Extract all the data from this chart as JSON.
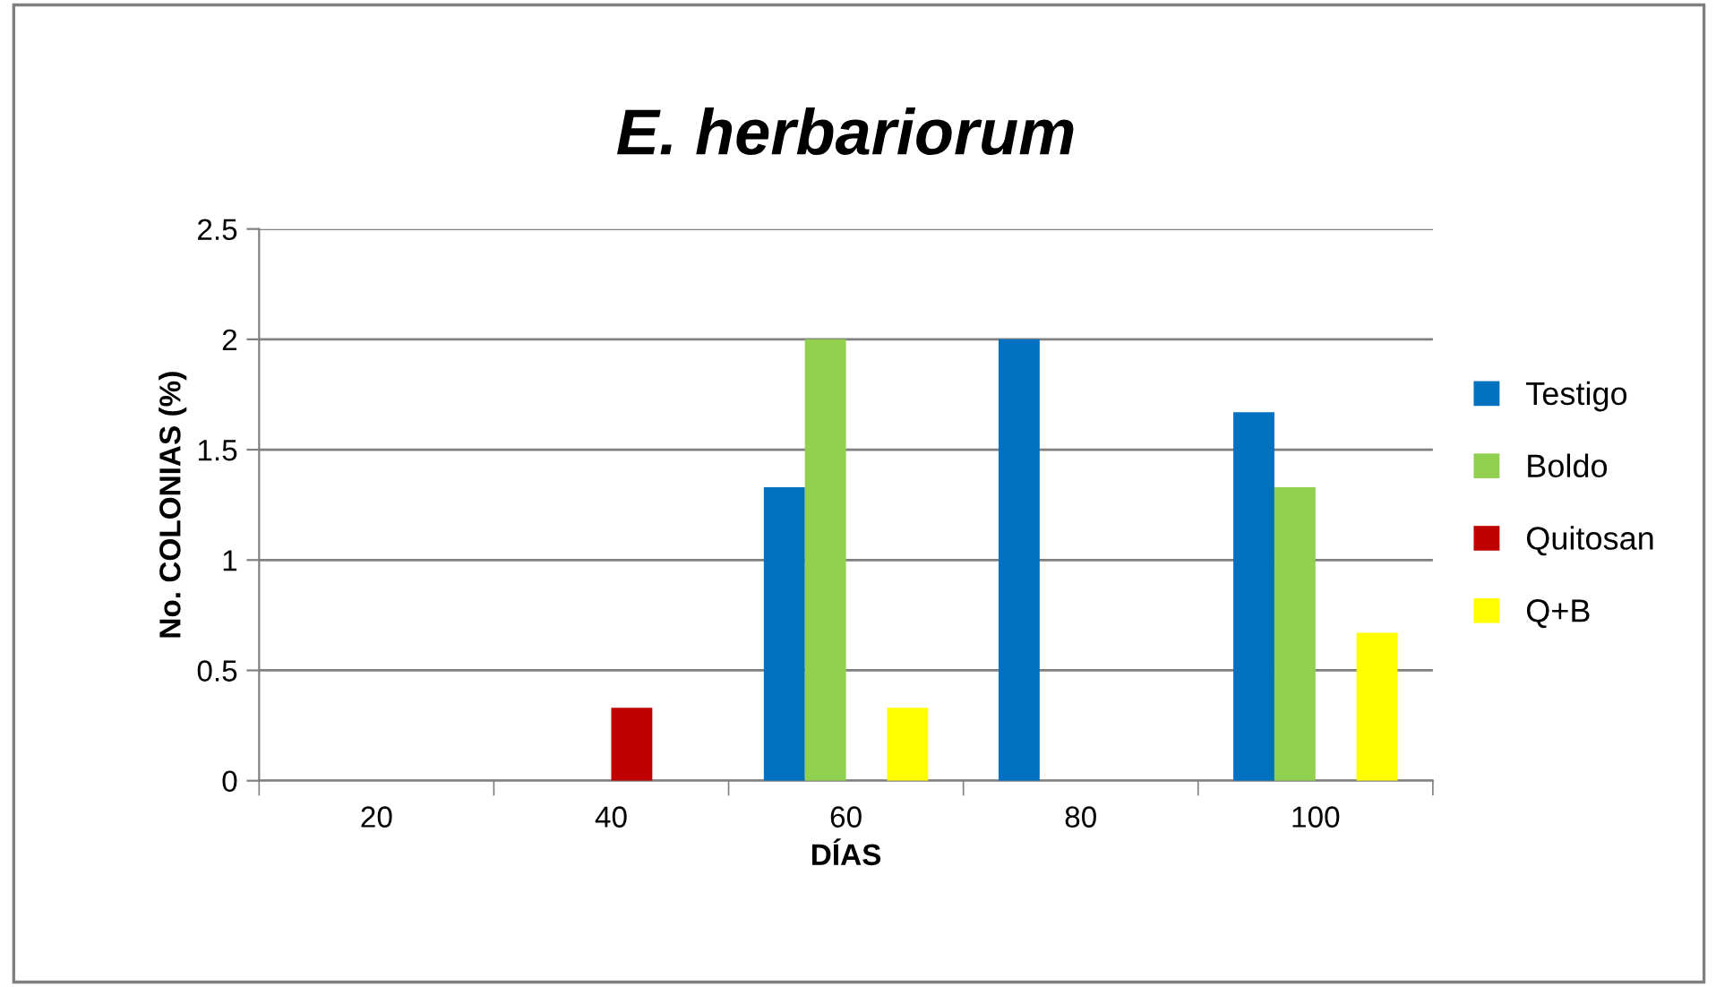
{
  "chart_data": {
    "type": "bar",
    "title": "E. herbariorum",
    "xlabel": "DÍAS",
    "ylabel": "No. COLONIAS (%)",
    "categories": [
      "20",
      "40",
      "60",
      "80",
      "100"
    ],
    "series": [
      {
        "name": "Testigo",
        "color": "#0070c0",
        "values": [
          0,
          0,
          1.33,
          2,
          1.67
        ]
      },
      {
        "name": "Boldo",
        "color": "#92d050",
        "values": [
          0,
          0,
          2,
          0,
          1.33
        ]
      },
      {
        "name": "Quitosan",
        "color": "#c00000",
        "values": [
          0,
          0.33,
          0,
          0,
          0
        ]
      },
      {
        "name": "Q+B",
        "color": "#ffff00",
        "values": [
          0,
          0,
          0.33,
          0,
          0.67
        ]
      }
    ],
    "ylim": [
      0,
      2.5
    ],
    "yticks": [
      0,
      0.5,
      1,
      1.5,
      2,
      2.5
    ],
    "grid": "y",
    "legend": "right"
  }
}
